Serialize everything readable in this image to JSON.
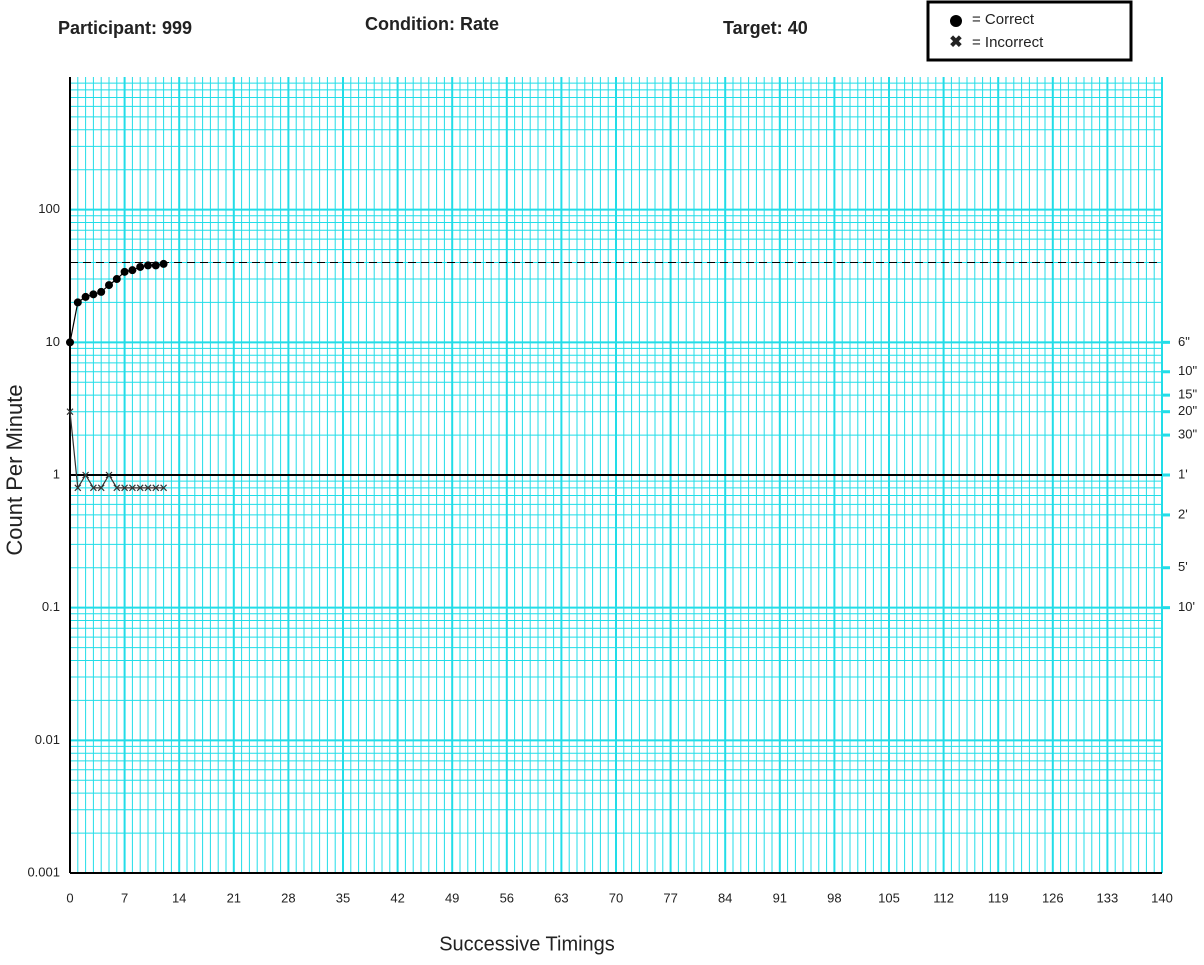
{
  "header": {
    "participant": "Participant: 999",
    "condition": "Condition: Rate",
    "target_label": "Target:",
    "target": 40
  },
  "legend": {
    "correct": "= Correct",
    "incorrect": "= Incorrect"
  },
  "chart_data": {
    "type": "line",
    "log_y": true,
    "grid": true,
    "x_label": "Successive Timings",
    "y_label": "Count Per Minute",
    "xlim": [
      0,
      140
    ],
    "ylim": [
      0.001,
      1000
    ],
    "xticks": [
      0,
      7,
      14,
      21,
      28,
      35,
      42,
      49,
      56,
      63,
      70,
      77,
      84,
      91,
      98,
      105,
      112,
      119,
      126,
      133,
      140
    ],
    "yticks": [
      0.001,
      0.01,
      0.1,
      1,
      10,
      100
    ],
    "timing_ticks": [
      {
        "value": 10,
        "label": "6\""
      },
      {
        "value": 6,
        "label": "10\""
      },
      {
        "value": 4,
        "label": "15\""
      },
      {
        "value": 3,
        "label": "20\""
      },
      {
        "value": 2,
        "label": "30\""
      },
      {
        "value": 1,
        "label": "1'"
      },
      {
        "value": 0.5,
        "label": "2'"
      },
      {
        "value": 0.2,
        "label": "5'"
      },
      {
        "value": 0.1,
        "label": "10'"
      }
    ],
    "target_line": 40,
    "record_floor": 1,
    "grid_color": "#22dde8",
    "x": [
      0,
      1,
      2,
      3,
      4,
      5,
      6,
      7,
      8,
      9,
      10,
      11,
      12
    ],
    "series": [
      {
        "name": "Correct",
        "marker": "circle",
        "color": "#000000",
        "values": [
          10,
          20,
          22,
          23,
          24,
          27,
          30,
          34,
          35,
          37,
          38,
          38,
          39
        ]
      },
      {
        "name": "Incorrect",
        "marker": "x",
        "color": "#333333",
        "values": [
          3,
          0.8,
          1,
          0.8,
          0.8,
          1,
          0.8,
          0.8,
          0.8,
          0.8,
          0.8,
          0.8,
          0.8
        ]
      }
    ]
  }
}
